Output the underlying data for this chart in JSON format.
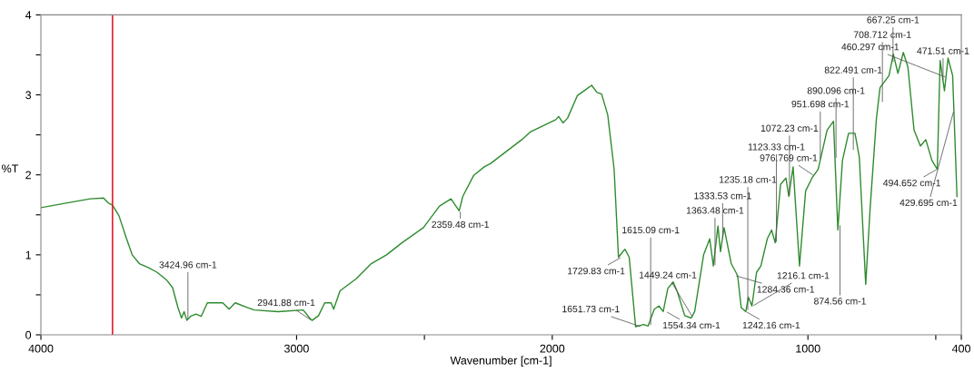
{
  "chart_data": {
    "type": "line",
    "xlabel": "Wavenumber [cm-1]",
    "ylabel": "%T",
    "xlim": [
      4000,
      400
    ],
    "ylim": [
      0,
      4
    ],
    "xticks": [
      4000,
      3000,
      {
        "value": 2500,
        "label": null
      },
      2000,
      1000,
      {
        "value": 500,
        "label": null
      },
      400
    ],
    "yticks": [
      0,
      {
        "value": 0.5,
        "label": null
      },
      1,
      {
        "value": 1.5,
        "label": null
      },
      2,
      {
        "value": 2.5,
        "label": null
      },
      3,
      {
        "value": 3.5,
        "label": null
      },
      4
    ],
    "grid": false,
    "marker": "none",
    "line_style": "solid",
    "series": [
      {
        "color": "#2e8b2e",
        "x": [
          4000,
          3912,
          3842,
          3807,
          3755,
          3737,
          3720,
          3695,
          3667,
          3643,
          3615,
          3580,
          3545,
          3510,
          3485,
          3464,
          3450,
          3440,
          3429,
          3415,
          3394,
          3373,
          3349,
          3289,
          3264,
          3240,
          3191,
          3166,
          3072,
          2974,
          2949,
          2939,
          2914,
          2890,
          2865,
          2855,
          2830,
          2767,
          2708,
          2648,
          2588,
          2504,
          2441,
          2396,
          2364,
          2350,
          2308,
          2266,
          2242,
          2119,
          2084,
          1986,
          1975,
          1958,
          1940,
          1902,
          1867,
          1846,
          1825,
          1807,
          1783,
          1758,
          1741,
          1716,
          1699,
          1674,
          1643,
          1625,
          1601,
          1583,
          1566,
          1548,
          1527,
          1510,
          1482,
          1457,
          1443,
          1408,
          1384,
          1370,
          1352,
          1342,
          1328,
          1300,
          1275,
          1261,
          1243,
          1233,
          1219,
          1201,
          1184,
          1159,
          1142,
          1128,
          1107,
          1086,
          1075,
          1058,
          1033,
          1009,
          984,
          960,
          925,
          900,
          883,
          865,
          841,
          816,
          799,
          774,
          757,
          732,
          718,
          683,
          666,
          648,
          627,
          609,
          585,
          560,
          539,
          515,
          494,
          483,
          466,
          452,
          434,
          417
        ],
        "values": [
          1.59,
          1.64,
          1.68,
          1.7,
          1.71,
          1.65,
          1.62,
          1.49,
          1.22,
          1.0,
          0.89,
          0.84,
          0.78,
          0.69,
          0.59,
          0.34,
          0.21,
          0.29,
          0.18,
          0.23,
          0.26,
          0.23,
          0.4,
          0.4,
          0.32,
          0.4,
          0.34,
          0.31,
          0.29,
          0.31,
          0.21,
          0.18,
          0.24,
          0.4,
          0.4,
          0.32,
          0.55,
          0.7,
          0.89,
          1.0,
          1.15,
          1.34,
          1.61,
          1.7,
          1.55,
          1.73,
          1.99,
          2.1,
          2.14,
          2.44,
          2.54,
          2.69,
          2.73,
          2.65,
          2.71,
          2.99,
          3.07,
          3.12,
          3.03,
          3.01,
          2.75,
          2.07,
          0.97,
          1.07,
          0.97,
          0.1,
          0.13,
          0.11,
          0.32,
          0.36,
          0.29,
          0.58,
          0.66,
          0.53,
          0.24,
          0.21,
          0.29,
          1.0,
          1.2,
          0.86,
          1.36,
          1.04,
          1.34,
          0.89,
          0.74,
          0.34,
          0.29,
          0.47,
          0.36,
          0.78,
          0.86,
          1.2,
          1.31,
          1.15,
          1.88,
          1.96,
          1.73,
          2.1,
          0.86,
          1.8,
          1.96,
          2.07,
          2.56,
          2.67,
          1.31,
          2.18,
          2.52,
          2.52,
          2.22,
          0.63,
          1.57,
          2.71,
          3.09,
          3.24,
          3.51,
          3.27,
          3.53,
          3.35,
          2.56,
          2.36,
          2.44,
          2.18,
          2.07,
          3.43,
          3.05,
          3.46,
          3.24,
          1.73
        ]
      }
    ],
    "ref_lines": [
      {
        "axis": "x",
        "value": 3720,
        "color": "#e8202a",
        "line_style": "solid"
      }
    ],
    "annotations": [
      {
        "text": "3424.96 cm-1",
        "x": 3424.96,
        "y": 0.18
      },
      {
        "text": "2941.88 cm-1",
        "x": 2941.88,
        "y": 0.18
      },
      {
        "text": "2359.48 cm-1",
        "x": 2359.48,
        "y": 1.55
      },
      {
        "text": "1729.83 cm-1",
        "x": 1729.83,
        "y": 0.97
      },
      {
        "text": "1651.73 cm-1",
        "x": 1651.73,
        "y": 0.1
      },
      {
        "text": "1615.09 cm-1",
        "x": 1615.09,
        "y": 0.11
      },
      {
        "text": "1554.34 cm-1",
        "x": 1554.34,
        "y": 0.29
      },
      {
        "text": "1449.24 cm-1",
        "x": 1449.24,
        "y": 0.21
      },
      {
        "text": "1363.48 cm-1",
        "x": 1363.48,
        "y": 0.86
      },
      {
        "text": "1333.53 cm-1",
        "x": 1333.53,
        "y": 1.2
      },
      {
        "text": "1284.36 cm-1",
        "x": 1284.36,
        "y": 0.74
      },
      {
        "text": "1242.16 cm-1",
        "x": 1242.16,
        "y": 0.29
      },
      {
        "text": "1216.1 cm-1",
        "x": 1216.1,
        "y": 0.36
      },
      {
        "text": "1235.18 cm-1",
        "x": 1235.18,
        "y": 0.3
      },
      {
        "text": "1123.33 cm-1",
        "x": 1123.33,
        "y": 1.15
      },
      {
        "text": "1072.23 cm-1",
        "x": 1072.23,
        "y": 1.73
      },
      {
        "text": "976.769 cm-1",
        "x": 976.769,
        "y": 1.99
      },
      {
        "text": "951.698 cm-1",
        "x": 951.698,
        "y": 2.19
      },
      {
        "text": "890.096 cm-1",
        "x": 890.096,
        "y": 2.2
      },
      {
        "text": "874.56 cm-1",
        "x": 874.56,
        "y": 1.38
      },
      {
        "text": "822.491 cm-1",
        "x": 822.491,
        "y": 2.3
      },
      {
        "text": "708.712 cm-1",
        "x": 708.712,
        "y": 2.9
      },
      {
        "text": "667.25 cm-1",
        "x": 667.25,
        "y": 3.4
      },
      {
        "text": "494.652 cm-1",
        "x": 494.652,
        "y": 2.07
      },
      {
        "text": "471.51 cm-1",
        "x": 471.51,
        "y": 3.17
      },
      {
        "text": "460.297 cm-1",
        "x": 460.297,
        "y": 3.22
      },
      {
        "text": "429.695 cm-1",
        "x": 429.695,
        "y": 2.8
      }
    ]
  }
}
